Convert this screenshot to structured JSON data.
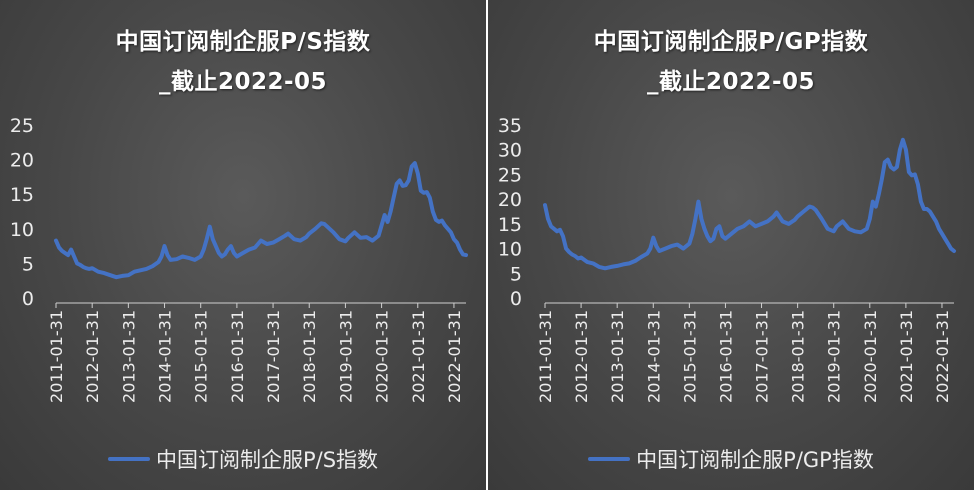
{
  "charts": [
    {
      "title_line1": "中国订阅制企服P/S指数",
      "title_line2": "_截止2022-05",
      "legend": "中国订阅制企服P/S指数",
      "color": "#4472c4"
    },
    {
      "title_line1": "中国订阅制企服P/GP指数",
      "title_line2": "_截止2022-05",
      "legend": "中国订阅制企服P/GP指数",
      "color": "#4472c4"
    }
  ],
  "chart_data": [
    {
      "type": "line",
      "title": "中国订阅制企服P/S指数_截止2022-05",
      "xlabel": "",
      "ylabel": "",
      "x_range": [
        "2011-01",
        "2022-05"
      ],
      "x_ticks": [
        "2011-01-31",
        "2012-01-31",
        "2013-01-31",
        "2014-01-31",
        "2015-01-31",
        "2016-01-31",
        "2017-01-31",
        "2018-01-31",
        "2019-01-31",
        "2020-01-31",
        "2021-01-31",
        "2022-01-31"
      ],
      "y_ticks": [
        0,
        5,
        10,
        15,
        20,
        25
      ],
      "ylim": [
        0,
        25
      ],
      "grid": false,
      "legend_position": "bottom",
      "series": [
        {
          "name": "中国订阅制企服P/S指数",
          "points": [
            [
              "2011-01",
              8.3
            ],
            [
              "2011-02",
              7.3
            ],
            [
              "2011-03",
              6.8
            ],
            [
              "2011-04",
              6.5
            ],
            [
              "2011-05",
              6.2
            ],
            [
              "2011-06",
              7.0
            ],
            [
              "2011-07",
              6.0
            ],
            [
              "2011-08",
              5.0
            ],
            [
              "2011-09",
              4.8
            ],
            [
              "2011-10",
              4.5
            ],
            [
              "2011-11",
              4.3
            ],
            [
              "2011-12",
              4.2
            ],
            [
              "2012-01",
              4.3
            ],
            [
              "2012-03",
              3.8
            ],
            [
              "2012-05",
              3.6
            ],
            [
              "2012-07",
              3.3
            ],
            [
              "2012-09",
              3.0
            ],
            [
              "2012-11",
              3.2
            ],
            [
              "2013-01",
              3.3
            ],
            [
              "2013-03",
              3.8
            ],
            [
              "2013-05",
              4.0
            ],
            [
              "2013-07",
              4.2
            ],
            [
              "2013-09",
              4.6
            ],
            [
              "2013-11",
              5.2
            ],
            [
              "2013-12",
              6.0
            ],
            [
              "2014-01",
              7.5
            ],
            [
              "2014-02",
              6.2
            ],
            [
              "2014-03",
              5.5
            ],
            [
              "2014-05",
              5.6
            ],
            [
              "2014-07",
              6.0
            ],
            [
              "2014-09",
              5.8
            ],
            [
              "2014-11",
              5.5
            ],
            [
              "2015-01",
              6.0
            ],
            [
              "2015-02",
              7.0
            ],
            [
              "2015-03",
              8.5
            ],
            [
              "2015-04",
              10.3
            ],
            [
              "2015-05",
              8.5
            ],
            [
              "2015-06",
              7.5
            ],
            [
              "2015-07",
              6.5
            ],
            [
              "2015-08",
              6.0
            ],
            [
              "2015-09",
              6.3
            ],
            [
              "2015-10",
              7.0
            ],
            [
              "2015-11",
              7.5
            ],
            [
              "2015-12",
              6.5
            ],
            [
              "2016-01",
              6.0
            ],
            [
              "2016-03",
              6.5
            ],
            [
              "2016-05",
              7.0
            ],
            [
              "2016-07",
              7.3
            ],
            [
              "2016-09",
              8.3
            ],
            [
              "2016-11",
              7.8
            ],
            [
              "2017-01",
              8.0
            ],
            [
              "2017-03",
              8.5
            ],
            [
              "2017-05",
              9.0
            ],
            [
              "2017-06",
              9.3
            ],
            [
              "2017-08",
              8.5
            ],
            [
              "2017-10",
              8.3
            ],
            [
              "2017-12",
              8.8
            ],
            [
              "2018-01",
              9.3
            ],
            [
              "2018-03",
              10.0
            ],
            [
              "2018-05",
              10.8
            ],
            [
              "2018-06",
              10.7
            ],
            [
              "2018-07",
              10.3
            ],
            [
              "2018-09",
              9.5
            ],
            [
              "2018-11",
              8.5
            ],
            [
              "2019-01",
              8.2
            ],
            [
              "2019-02",
              8.7
            ],
            [
              "2019-04",
              9.5
            ],
            [
              "2019-06",
              8.7
            ],
            [
              "2019-08",
              8.8
            ],
            [
              "2019-10",
              8.3
            ],
            [
              "2019-12",
              9.0
            ],
            [
              "2020-01",
              10.5
            ],
            [
              "2020-02",
              12.0
            ],
            [
              "2020-03",
              11.0
            ],
            [
              "2020-04",
              12.5
            ],
            [
              "2020-05",
              14.5
            ],
            [
              "2020-06",
              16.5
            ],
            [
              "2020-07",
              17.0
            ],
            [
              "2020-08",
              16.2
            ],
            [
              "2020-09",
              16.3
            ],
            [
              "2020-10",
              17.0
            ],
            [
              "2020-11",
              19.0
            ],
            [
              "2020-12",
              19.5
            ],
            [
              "2021-01",
              18.0
            ],
            [
              "2021-02",
              15.5
            ],
            [
              "2021-03",
              15.2
            ],
            [
              "2021-04",
              15.3
            ],
            [
              "2021-05",
              14.5
            ],
            [
              "2021-06",
              12.5
            ],
            [
              "2021-07",
              11.3
            ],
            [
              "2021-08",
              11.0
            ],
            [
              "2021-09",
              11.2
            ],
            [
              "2021-10",
              10.5
            ],
            [
              "2021-11",
              10.0
            ],
            [
              "2021-12",
              9.5
            ],
            [
              "2022-01",
              8.5
            ],
            [
              "2022-02",
              8.0
            ],
            [
              "2022-03",
              7.0
            ],
            [
              "2022-04",
              6.3
            ],
            [
              "2022-05",
              6.2
            ]
          ]
        }
      ]
    },
    {
      "type": "line",
      "title": "中国订阅制企服P/GP指数_截止2022-05",
      "xlabel": "",
      "ylabel": "",
      "x_range": [
        "2011-01",
        "2022-05"
      ],
      "x_ticks": [
        "2011-01-31",
        "2012-01-31",
        "2013-01-31",
        "2014-01-31",
        "2015-01-31",
        "2016-01-31",
        "2017-01-31",
        "2018-01-31",
        "2019-01-31",
        "2020-01-31",
        "2021-01-31",
        "2022-01-31"
      ],
      "y_ticks": [
        0,
        5,
        10,
        15,
        20,
        25,
        30,
        35
      ],
      "ylim": [
        0,
        35
      ],
      "grid": false,
      "legend_position": "bottom",
      "series": [
        {
          "name": "中国订阅制企服P/GP指数",
          "points": [
            [
              "2011-01",
              18.8
            ],
            [
              "2011-02",
              16.0
            ],
            [
              "2011-03",
              14.5
            ],
            [
              "2011-04",
              14.0
            ],
            [
              "2011-05",
              13.5
            ],
            [
              "2011-06",
              13.8
            ],
            [
              "2011-07",
              12.5
            ],
            [
              "2011-08",
              10.0
            ],
            [
              "2011-09",
              9.3
            ],
            [
              "2011-10",
              8.8
            ],
            [
              "2011-11",
              8.5
            ],
            [
              "2011-12",
              8.0
            ],
            [
              "2012-01",
              8.2
            ],
            [
              "2012-03",
              7.3
            ],
            [
              "2012-05",
              7.0
            ],
            [
              "2012-07",
              6.3
            ],
            [
              "2012-09",
              6.0
            ],
            [
              "2012-11",
              6.3
            ],
            [
              "2013-01",
              6.5
            ],
            [
              "2013-03",
              6.8
            ],
            [
              "2013-05",
              7.0
            ],
            [
              "2013-07",
              7.5
            ],
            [
              "2013-09",
              8.3
            ],
            [
              "2013-11",
              9.0
            ],
            [
              "2013-12",
              10.0
            ],
            [
              "2014-01",
              12.2
            ],
            [
              "2014-02",
              10.5
            ],
            [
              "2014-03",
              9.5
            ],
            [
              "2014-05",
              10.0
            ],
            [
              "2014-07",
              10.5
            ],
            [
              "2014-09",
              10.8
            ],
            [
              "2014-11",
              10.0
            ],
            [
              "2015-01",
              11.0
            ],
            [
              "2015-02",
              13.0
            ],
            [
              "2015-03",
              16.0
            ],
            [
              "2015-04",
              19.5
            ],
            [
              "2015-05",
              16.0
            ],
            [
              "2015-06",
              14.0
            ],
            [
              "2015-07",
              12.5
            ],
            [
              "2015-08",
              11.5
            ],
            [
              "2015-09",
              12.0
            ],
            [
              "2015-10",
              14.0
            ],
            [
              "2015-11",
              14.5
            ],
            [
              "2015-12",
              12.5
            ],
            [
              "2016-01",
              12.0
            ],
            [
              "2016-03",
              13.0
            ],
            [
              "2016-05",
              14.0
            ],
            [
              "2016-07",
              14.5
            ],
            [
              "2016-09",
              15.5
            ],
            [
              "2016-11",
              14.5
            ],
            [
              "2017-01",
              15.0
            ],
            [
              "2017-03",
              15.5
            ],
            [
              "2017-05",
              16.5
            ],
            [
              "2017-06",
              17.3
            ],
            [
              "2017-08",
              15.5
            ],
            [
              "2017-10",
              15.0
            ],
            [
              "2017-12",
              15.8
            ],
            [
              "2018-01",
              16.5
            ],
            [
              "2018-03",
              17.5
            ],
            [
              "2018-05",
              18.5
            ],
            [
              "2018-06",
              18.3
            ],
            [
              "2018-07",
              17.8
            ],
            [
              "2018-09",
              16.0
            ],
            [
              "2018-11",
              14.0
            ],
            [
              "2019-01",
              13.5
            ],
            [
              "2019-02",
              14.5
            ],
            [
              "2019-04",
              15.5
            ],
            [
              "2019-06",
              14.0
            ],
            [
              "2019-08",
              13.5
            ],
            [
              "2019-10",
              13.3
            ],
            [
              "2019-12",
              14.0
            ],
            [
              "2020-01",
              16.0
            ],
            [
              "2020-02",
              19.5
            ],
            [
              "2020-03",
              18.5
            ],
            [
              "2020-04",
              21.0
            ],
            [
              "2020-05",
              24.0
            ],
            [
              "2020-06",
              27.5
            ],
            [
              "2020-07",
              28.0
            ],
            [
              "2020-08",
              26.5
            ],
            [
              "2020-09",
              26.0
            ],
            [
              "2020-10",
              26.5
            ],
            [
              "2020-11",
              30.0
            ],
            [
              "2020-12",
              32.0
            ],
            [
              "2021-01",
              30.0
            ],
            [
              "2021-02",
              25.5
            ],
            [
              "2021-03",
              24.8
            ],
            [
              "2021-04",
              25.0
            ],
            [
              "2021-05",
              23.0
            ],
            [
              "2021-06",
              19.5
            ],
            [
              "2021-07",
              18.0
            ],
            [
              "2021-08",
              18.0
            ],
            [
              "2021-09",
              17.5
            ],
            [
              "2021-10",
              16.5
            ],
            [
              "2021-11",
              15.5
            ],
            [
              "2021-12",
              14.0
            ],
            [
              "2022-01",
              13.0
            ],
            [
              "2022-02",
              12.0
            ],
            [
              "2022-03",
              11.0
            ],
            [
              "2022-04",
              10.0
            ],
            [
              "2022-05",
              9.5
            ]
          ]
        }
      ]
    }
  ]
}
